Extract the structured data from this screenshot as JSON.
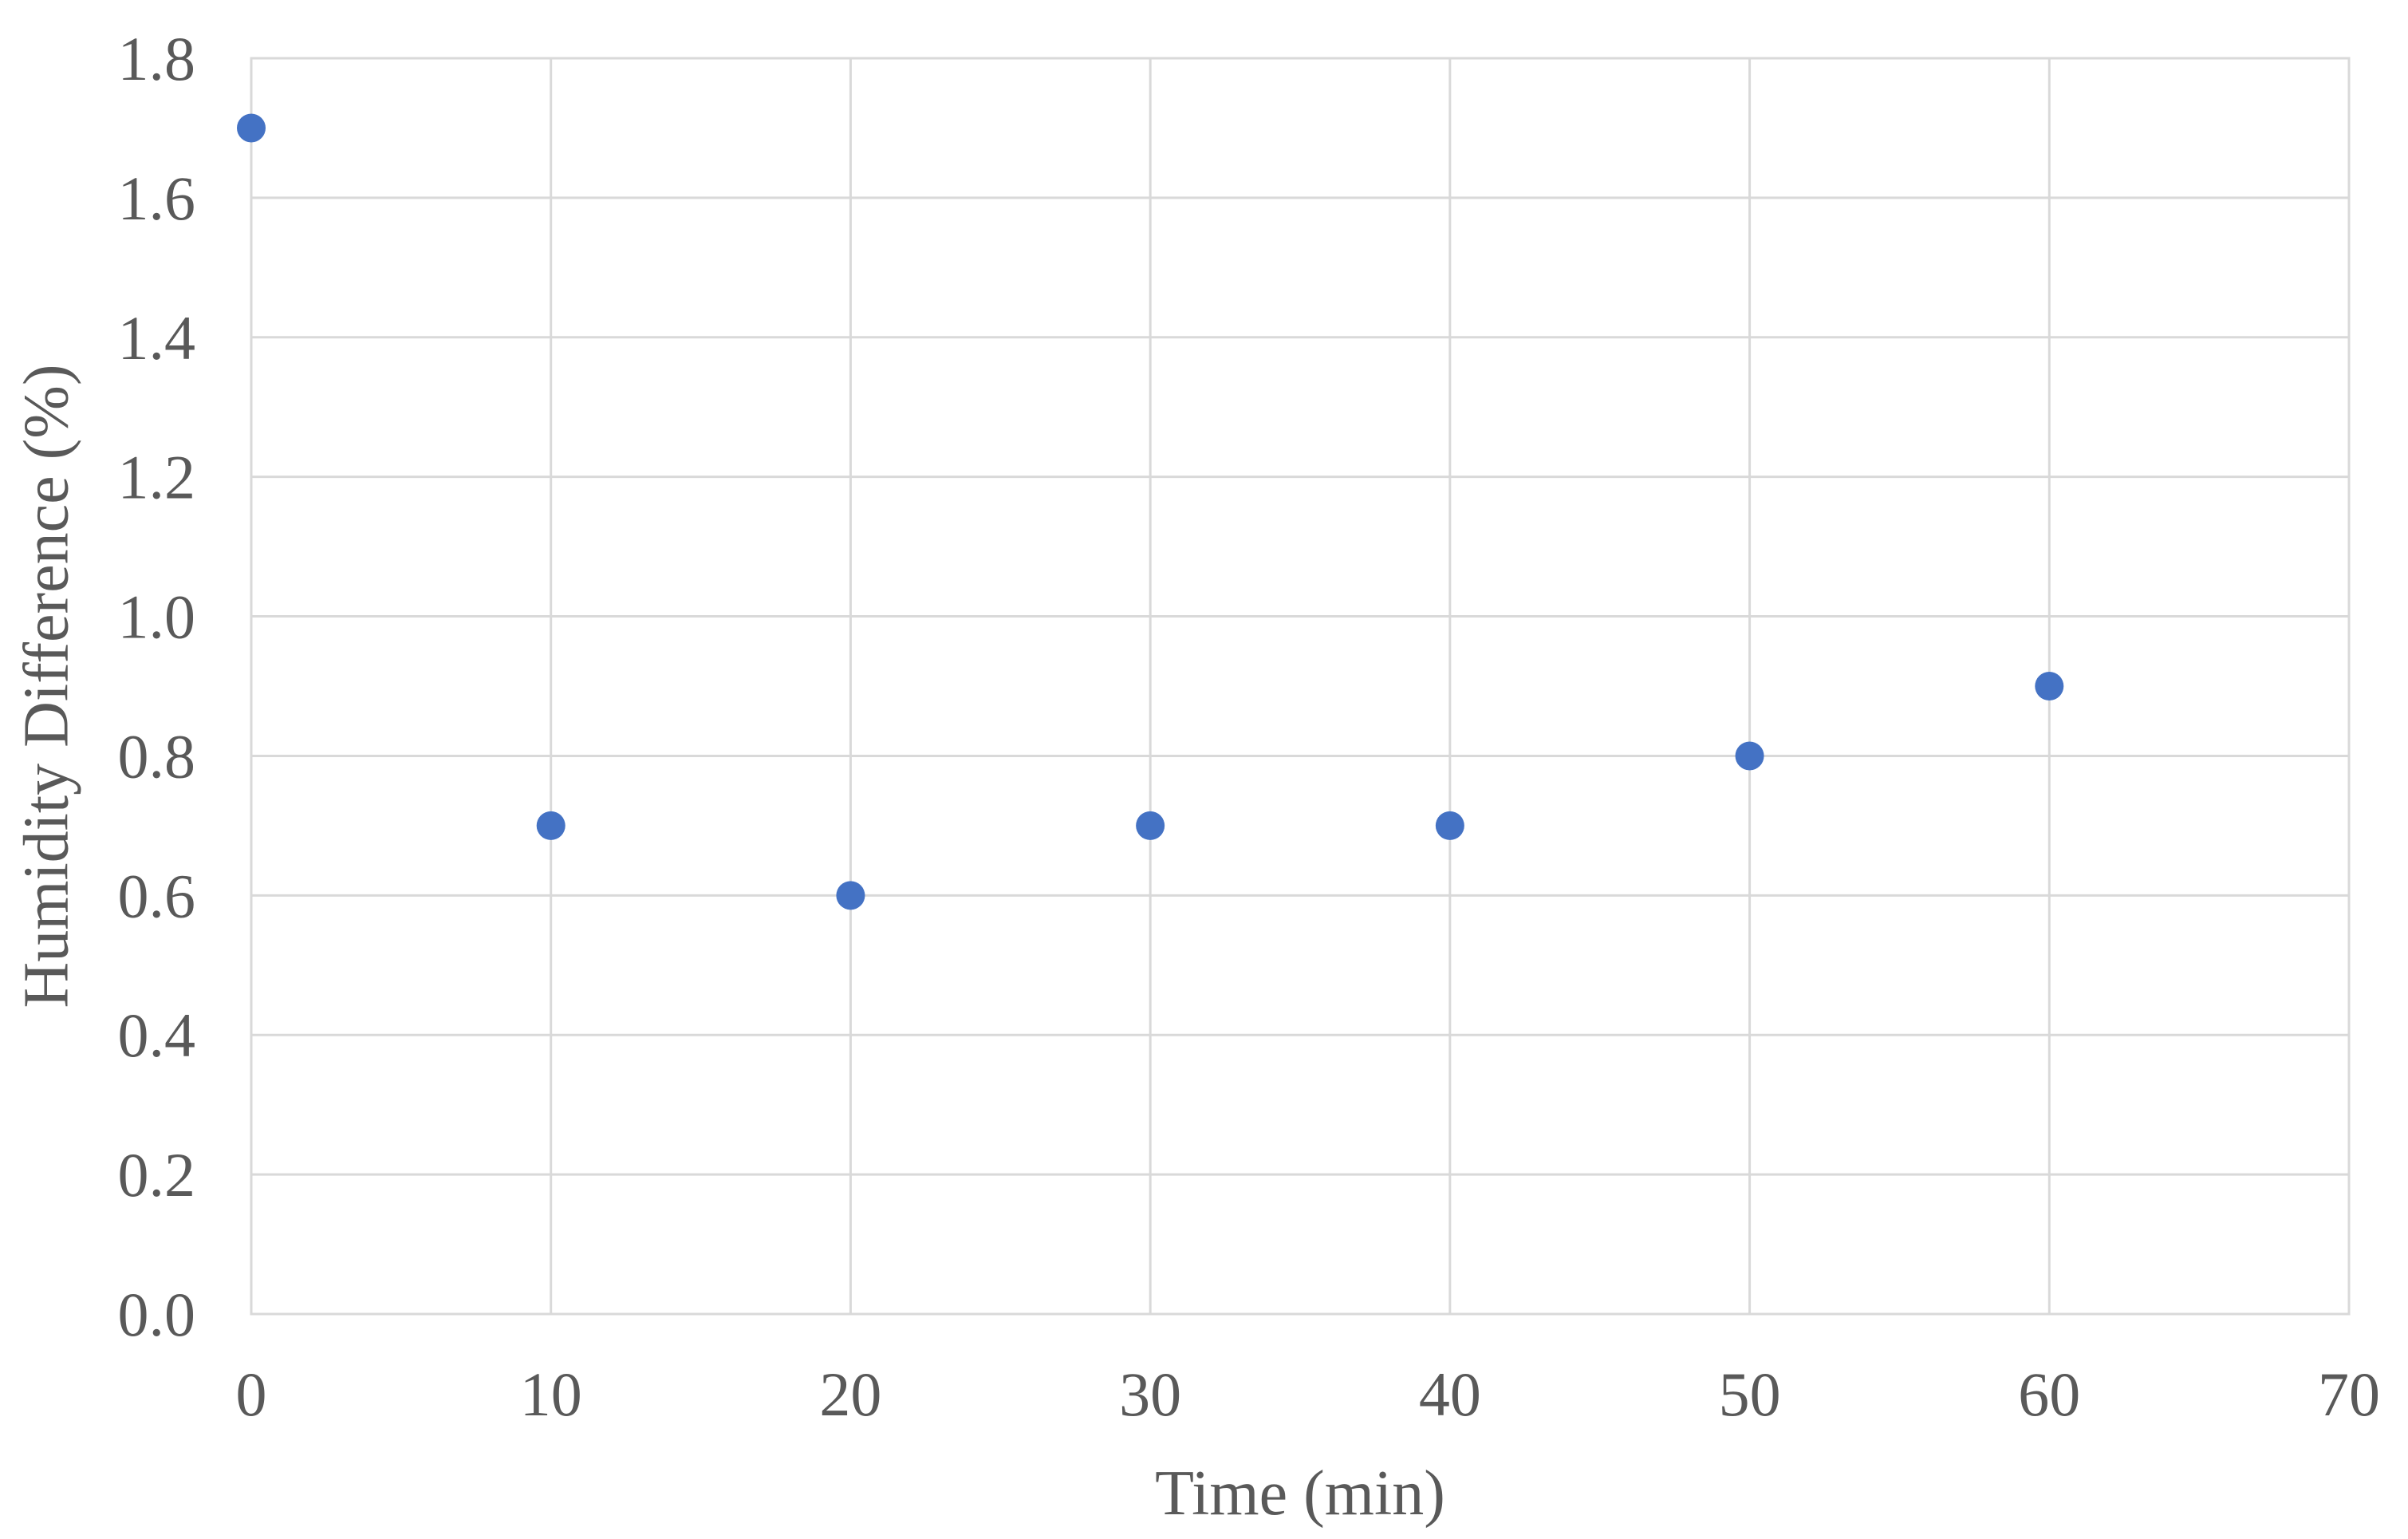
{
  "chart_data": {
    "type": "scatter",
    "title": "",
    "xlabel": "Time (min)",
    "ylabel": "Humidity Difference (%)",
    "xlim": [
      0,
      70
    ],
    "ylim": [
      0.0,
      1.8
    ],
    "x_ticks": [
      "0",
      "10",
      "20",
      "30",
      "40",
      "50",
      "60",
      "70"
    ],
    "y_ticks": [
      "0.0",
      "0.2",
      "0.4",
      "0.6",
      "0.8",
      "1.0",
      "1.2",
      "1.4",
      "1.6",
      "1.8"
    ],
    "grid": true,
    "legend": "none",
    "series": [
      {
        "color": "#4472c4",
        "points": [
          {
            "x": 0,
            "y": 1.7
          },
          {
            "x": 10,
            "y": 0.7
          },
          {
            "x": 20,
            "y": 0.6
          },
          {
            "x": 30,
            "y": 0.7
          },
          {
            "x": 40,
            "y": 0.7
          },
          {
            "x": 50,
            "y": 0.8
          },
          {
            "x": 60,
            "y": 0.9
          }
        ]
      }
    ]
  }
}
